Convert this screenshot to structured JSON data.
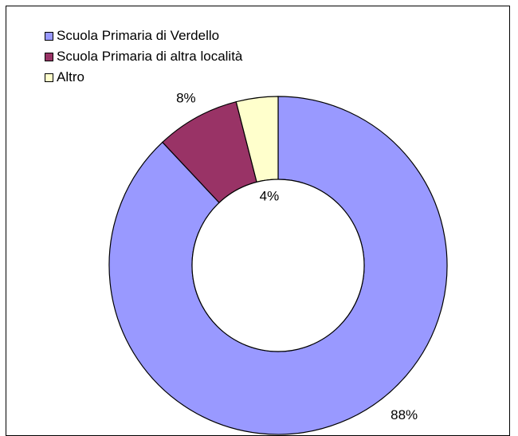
{
  "chart_data": {
    "type": "pie",
    "variant": "donut",
    "categories": [
      "Scuola Primaria di Verdello",
      "Scuola Primaria di altra località",
      "Altro"
    ],
    "values": [
      88,
      8,
      4
    ],
    "data_labels": [
      "88%",
      "8%",
      "4%"
    ],
    "colors": [
      "#9999FF",
      "#993366",
      "#FFFFCC"
    ],
    "legend_position": "top-left",
    "title": ""
  }
}
